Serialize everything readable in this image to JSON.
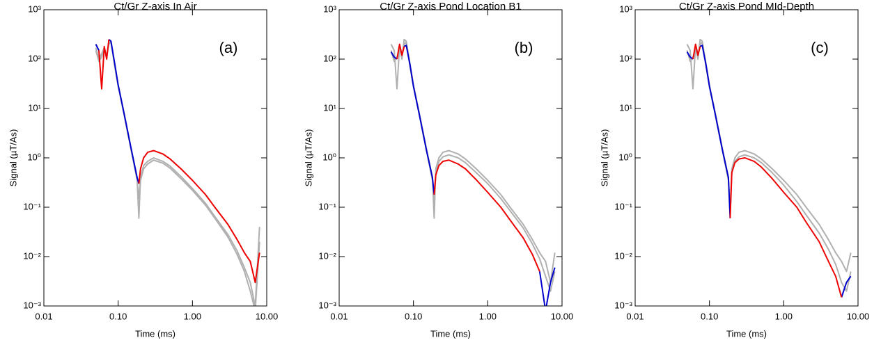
{
  "chart_data": [
    {
      "type": "line",
      "title": "Ct/Gr Z-axis In Air",
      "annotation": "(a)",
      "xlabel": "Time (ms)",
      "ylabel": "Signal (µT/As)",
      "xscale": "log",
      "yscale": "log",
      "xlim": [
        0.01,
        10
      ],
      "ylim": [
        0.001,
        1000
      ],
      "xticks": [
        0.01,
        {
          "value": 0.1,
          "label": "0.10"
        },
        {
          "value": 1,
          "label": "1.00"
        },
        {
          "value": 10,
          "label": "10.00"
        }
      ],
      "yticks": [
        {
          "value": 0.001,
          "label": "10⁻³"
        },
        {
          "value": 0.01,
          "label": "10⁻²"
        },
        {
          "value": 0.1,
          "label": "10⁻¹"
        },
        {
          "value": 1,
          "label": "10⁰"
        },
        {
          "value": 10,
          "label": "10¹"
        },
        {
          "value": 100,
          "label": "10²"
        },
        {
          "value": 1000,
          "label": "10³"
        }
      ],
      "x": [
        0.05,
        0.055,
        0.06,
        0.065,
        0.07,
        0.075,
        0.08,
        0.09,
        0.1,
        0.12,
        0.15,
        0.18,
        0.19,
        0.2,
        0.22,
        0.25,
        0.3,
        0.4,
        0.5,
        0.7,
        1,
        1.5,
        2,
        3,
        4,
        5,
        6,
        7,
        8
      ],
      "series": [
        {
          "color": "#b0b0b0",
          "values": [
            150,
            90,
            110,
            160,
            120,
            200,
            220,
            70,
            28,
            7.5,
            1.4,
            0.35,
            0.06,
            0.4,
            0.7,
            0.85,
            1.0,
            0.85,
            0.68,
            0.42,
            0.24,
            0.12,
            0.065,
            0.028,
            0.013,
            0.006,
            0.003,
            0.001,
            0.04
          ]
        },
        {
          "color": "#b0b0b0",
          "values": [
            170,
            100,
            130,
            170,
            110,
            210,
            230,
            75,
            29,
            7.8,
            1.45,
            0.37,
            0.15,
            0.35,
            0.6,
            0.75,
            0.9,
            0.78,
            0.62,
            0.38,
            0.22,
            0.11,
            0.06,
            0.025,
            0.011,
            0.005,
            0.002,
            0.0008,
            0.02
          ]
        },
        {
          "color": "#0000cc",
          "values": [
            200,
            150,
            null,
            null,
            null,
            250,
            230,
            80,
            30,
            8,
            1.5,
            0.4,
            0.3,
            null,
            null,
            null,
            null,
            null,
            null,
            null,
            null,
            null,
            null,
            null,
            null,
            null,
            null,
            null,
            null
          ]
        },
        {
          "color": "#ee0000",
          "values": [
            null,
            150,
            25,
            180,
            100,
            250,
            null,
            null,
            null,
            null,
            null,
            null,
            0.3,
            0.6,
            1.0,
            1.3,
            1.4,
            1.2,
            0.95,
            0.6,
            0.35,
            0.18,
            0.1,
            0.045,
            0.022,
            0.012,
            0.008,
            0.003,
            0.012
          ]
        }
      ]
    },
    {
      "type": "line",
      "title": "Ct/Gr Z-axis Pond Location B1",
      "annotation": "(b)",
      "xlabel": "Time (ms)",
      "ylabel": "Signal (µT/As)",
      "xscale": "log",
      "yscale": "log",
      "xlim": [
        0.01,
        10
      ],
      "ylim": [
        0.001,
        1000
      ],
      "xticks": [
        0.01,
        {
          "value": 0.1,
          "label": "0.10"
        },
        {
          "value": 1,
          "label": "1.00"
        },
        {
          "value": 10,
          "label": "10.00"
        }
      ],
      "yticks": [
        {
          "value": 0.001,
          "label": "10⁻³"
        },
        {
          "value": 0.01,
          "label": "10⁻²"
        },
        {
          "value": 0.1,
          "label": "10⁻¹"
        },
        {
          "value": 1,
          "label": "10⁰"
        },
        {
          "value": 10,
          "label": "10¹"
        },
        {
          "value": 100,
          "label": "10²"
        },
        {
          "value": 1000,
          "label": "10³"
        }
      ],
      "x": [
        0.05,
        0.055,
        0.06,
        0.065,
        0.07,
        0.075,
        0.08,
        0.09,
        0.1,
        0.12,
        0.15,
        0.18,
        0.19,
        0.2,
        0.22,
        0.25,
        0.3,
        0.4,
        0.5,
        0.7,
        1,
        1.5,
        2,
        3,
        4,
        5,
        6,
        7,
        8
      ],
      "series": [
        {
          "color": "#b0b0b0",
          "values": [
            200,
            150,
            25,
            180,
            100,
            250,
            230,
            80,
            30,
            8,
            1.5,
            0.4,
            0.06,
            0.6,
            1.0,
            1.3,
            1.4,
            1.2,
            0.95,
            0.6,
            0.35,
            0.18,
            0.1,
            0.045,
            0.022,
            0.012,
            0.008,
            0.003,
            0.012
          ]
        },
        {
          "color": "#b0b0b0",
          "values": [
            150,
            90,
            110,
            160,
            120,
            200,
            220,
            70,
            28,
            7.5,
            1.4,
            0.35,
            0.15,
            0.5,
            0.85,
            1.05,
            1.15,
            1.0,
            0.8,
            0.5,
            0.3,
            0.15,
            0.085,
            0.038,
            0.018,
            0.009,
            0.004,
            0.002,
            0.005
          ]
        },
        {
          "color": "#0000cc",
          "values": [
            140,
            110,
            100,
            null,
            null,
            180,
            190,
            75,
            28,
            7.5,
            1.4,
            0.4,
            0.18,
            null,
            null,
            null,
            null,
            null,
            null,
            null,
            null,
            null,
            null,
            null,
            null,
            0.005,
            0.0008,
            0.003,
            0.006
          ]
        },
        {
          "color": "#ee0000",
          "values": [
            null,
            null,
            100,
            200,
            120,
            180,
            null,
            null,
            null,
            null,
            null,
            null,
            0.18,
            0.45,
            0.7,
            0.85,
            0.9,
            0.75,
            0.6,
            0.36,
            0.2,
            0.1,
            0.055,
            0.024,
            0.011,
            0.005,
            null,
            null,
            0.04
          ]
        }
      ]
    },
    {
      "type": "line",
      "title": "Ct/Gr Z-axis Pond MId-Depth",
      "annotation": "(c)",
      "xlabel": "Time (ms)",
      "ylabel": "Signal (µT/As)",
      "xscale": "log",
      "yscale": "log",
      "xlim": [
        0.01,
        10
      ],
      "ylim": [
        0.001,
        1000
      ],
      "xticks": [
        0.01,
        {
          "value": 0.1,
          "label": "0.10"
        },
        {
          "value": 1,
          "label": "1.00"
        },
        {
          "value": 10,
          "label": "10.00"
        }
      ],
      "yticks": [
        {
          "value": 0.001,
          "label": "10⁻³"
        },
        {
          "value": 0.01,
          "label": "10⁻²"
        },
        {
          "value": 0.1,
          "label": "10⁻¹"
        },
        {
          "value": 1,
          "label": "10⁰"
        },
        {
          "value": 10,
          "label": "10¹"
        },
        {
          "value": 100,
          "label": "10²"
        },
        {
          "value": 1000,
          "label": "10³"
        }
      ],
      "x": [
        0.05,
        0.055,
        0.06,
        0.065,
        0.07,
        0.075,
        0.08,
        0.09,
        0.1,
        0.12,
        0.15,
        0.18,
        0.19,
        0.2,
        0.22,
        0.25,
        0.3,
        0.4,
        0.5,
        0.7,
        1,
        1.5,
        2,
        3,
        4,
        5,
        6,
        7,
        8
      ],
      "series": [
        {
          "color": "#b0b0b0",
          "values": [
            200,
            150,
            25,
            180,
            100,
            250,
            230,
            80,
            30,
            8,
            1.5,
            0.4,
            0.07,
            0.6,
            1.0,
            1.3,
            1.4,
            1.2,
            0.95,
            0.6,
            0.35,
            0.18,
            0.1,
            0.045,
            0.022,
            0.012,
            0.008,
            0.005,
            0.012
          ]
        },
        {
          "color": "#b0b0b0",
          "values": [
            150,
            90,
            110,
            160,
            120,
            200,
            220,
            70,
            28,
            7.5,
            1.4,
            0.35,
            0.1,
            0.5,
            0.85,
            1.05,
            1.15,
            1.0,
            0.8,
            0.5,
            0.28,
            0.13,
            0.07,
            0.03,
            0.014,
            0.007,
            0.003,
            0.002,
            0.005
          ]
        },
        {
          "color": "#0000cc",
          "values": [
            140,
            110,
            100,
            null,
            null,
            180,
            190,
            75,
            28,
            7.5,
            1.4,
            0.4,
            0.06,
            null,
            null,
            null,
            null,
            null,
            null,
            null,
            null,
            null,
            null,
            null,
            null,
            null,
            0.0015,
            0.003,
            0.004
          ]
        },
        {
          "color": "#ee0000",
          "values": [
            null,
            null,
            100,
            200,
            120,
            180,
            null,
            null,
            null,
            null,
            null,
            null,
            0.06,
            0.5,
            0.8,
            0.95,
            1.0,
            0.85,
            0.65,
            0.38,
            0.2,
            0.1,
            0.05,
            0.02,
            0.008,
            0.004,
            0.0015,
            null,
            0.035
          ]
        }
      ]
    }
  ]
}
